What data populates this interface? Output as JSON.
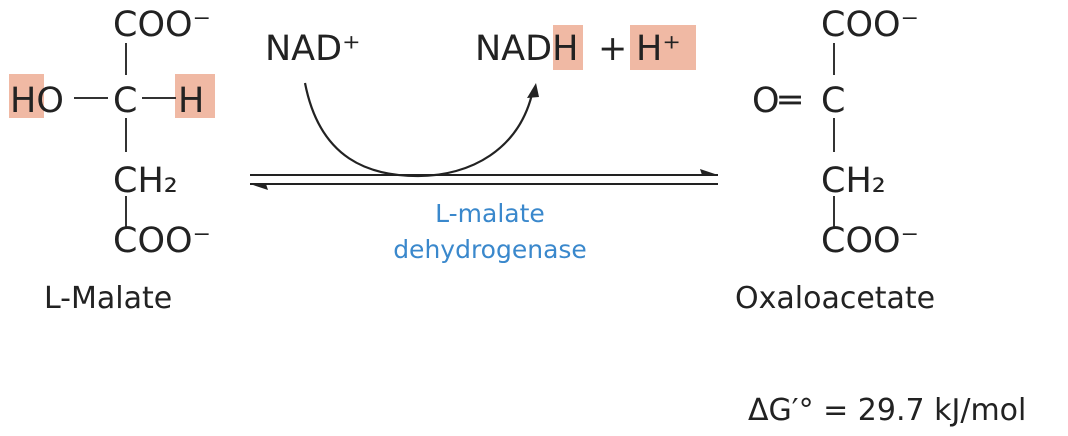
{
  "reactant": {
    "name": "L-Malate",
    "top_group": "COO⁻",
    "left_group": "HO",
    "center": "C",
    "right_group": "H",
    "middle_group": "CH₂",
    "bottom_group": "COO⁻"
  },
  "product": {
    "name": "Oxaloacetate",
    "top_group": "COO⁻",
    "left_group": "O═",
    "center": "C",
    "middle_group": "CH₂",
    "bottom_group": "COO⁻"
  },
  "cofactor_in": "NAD⁺",
  "cofactor_out": "NADH",
  "plus": "+",
  "proton": "H⁺",
  "enzyme": {
    "line1": "L-malate",
    "line2": "dehydrogenase"
  },
  "free_energy": "ΔG′° = 29.7 kJ/mol",
  "colors": {
    "highlight": "#f0b9a4",
    "enzyme_text": "#3a88cc",
    "text": "#222222"
  }
}
